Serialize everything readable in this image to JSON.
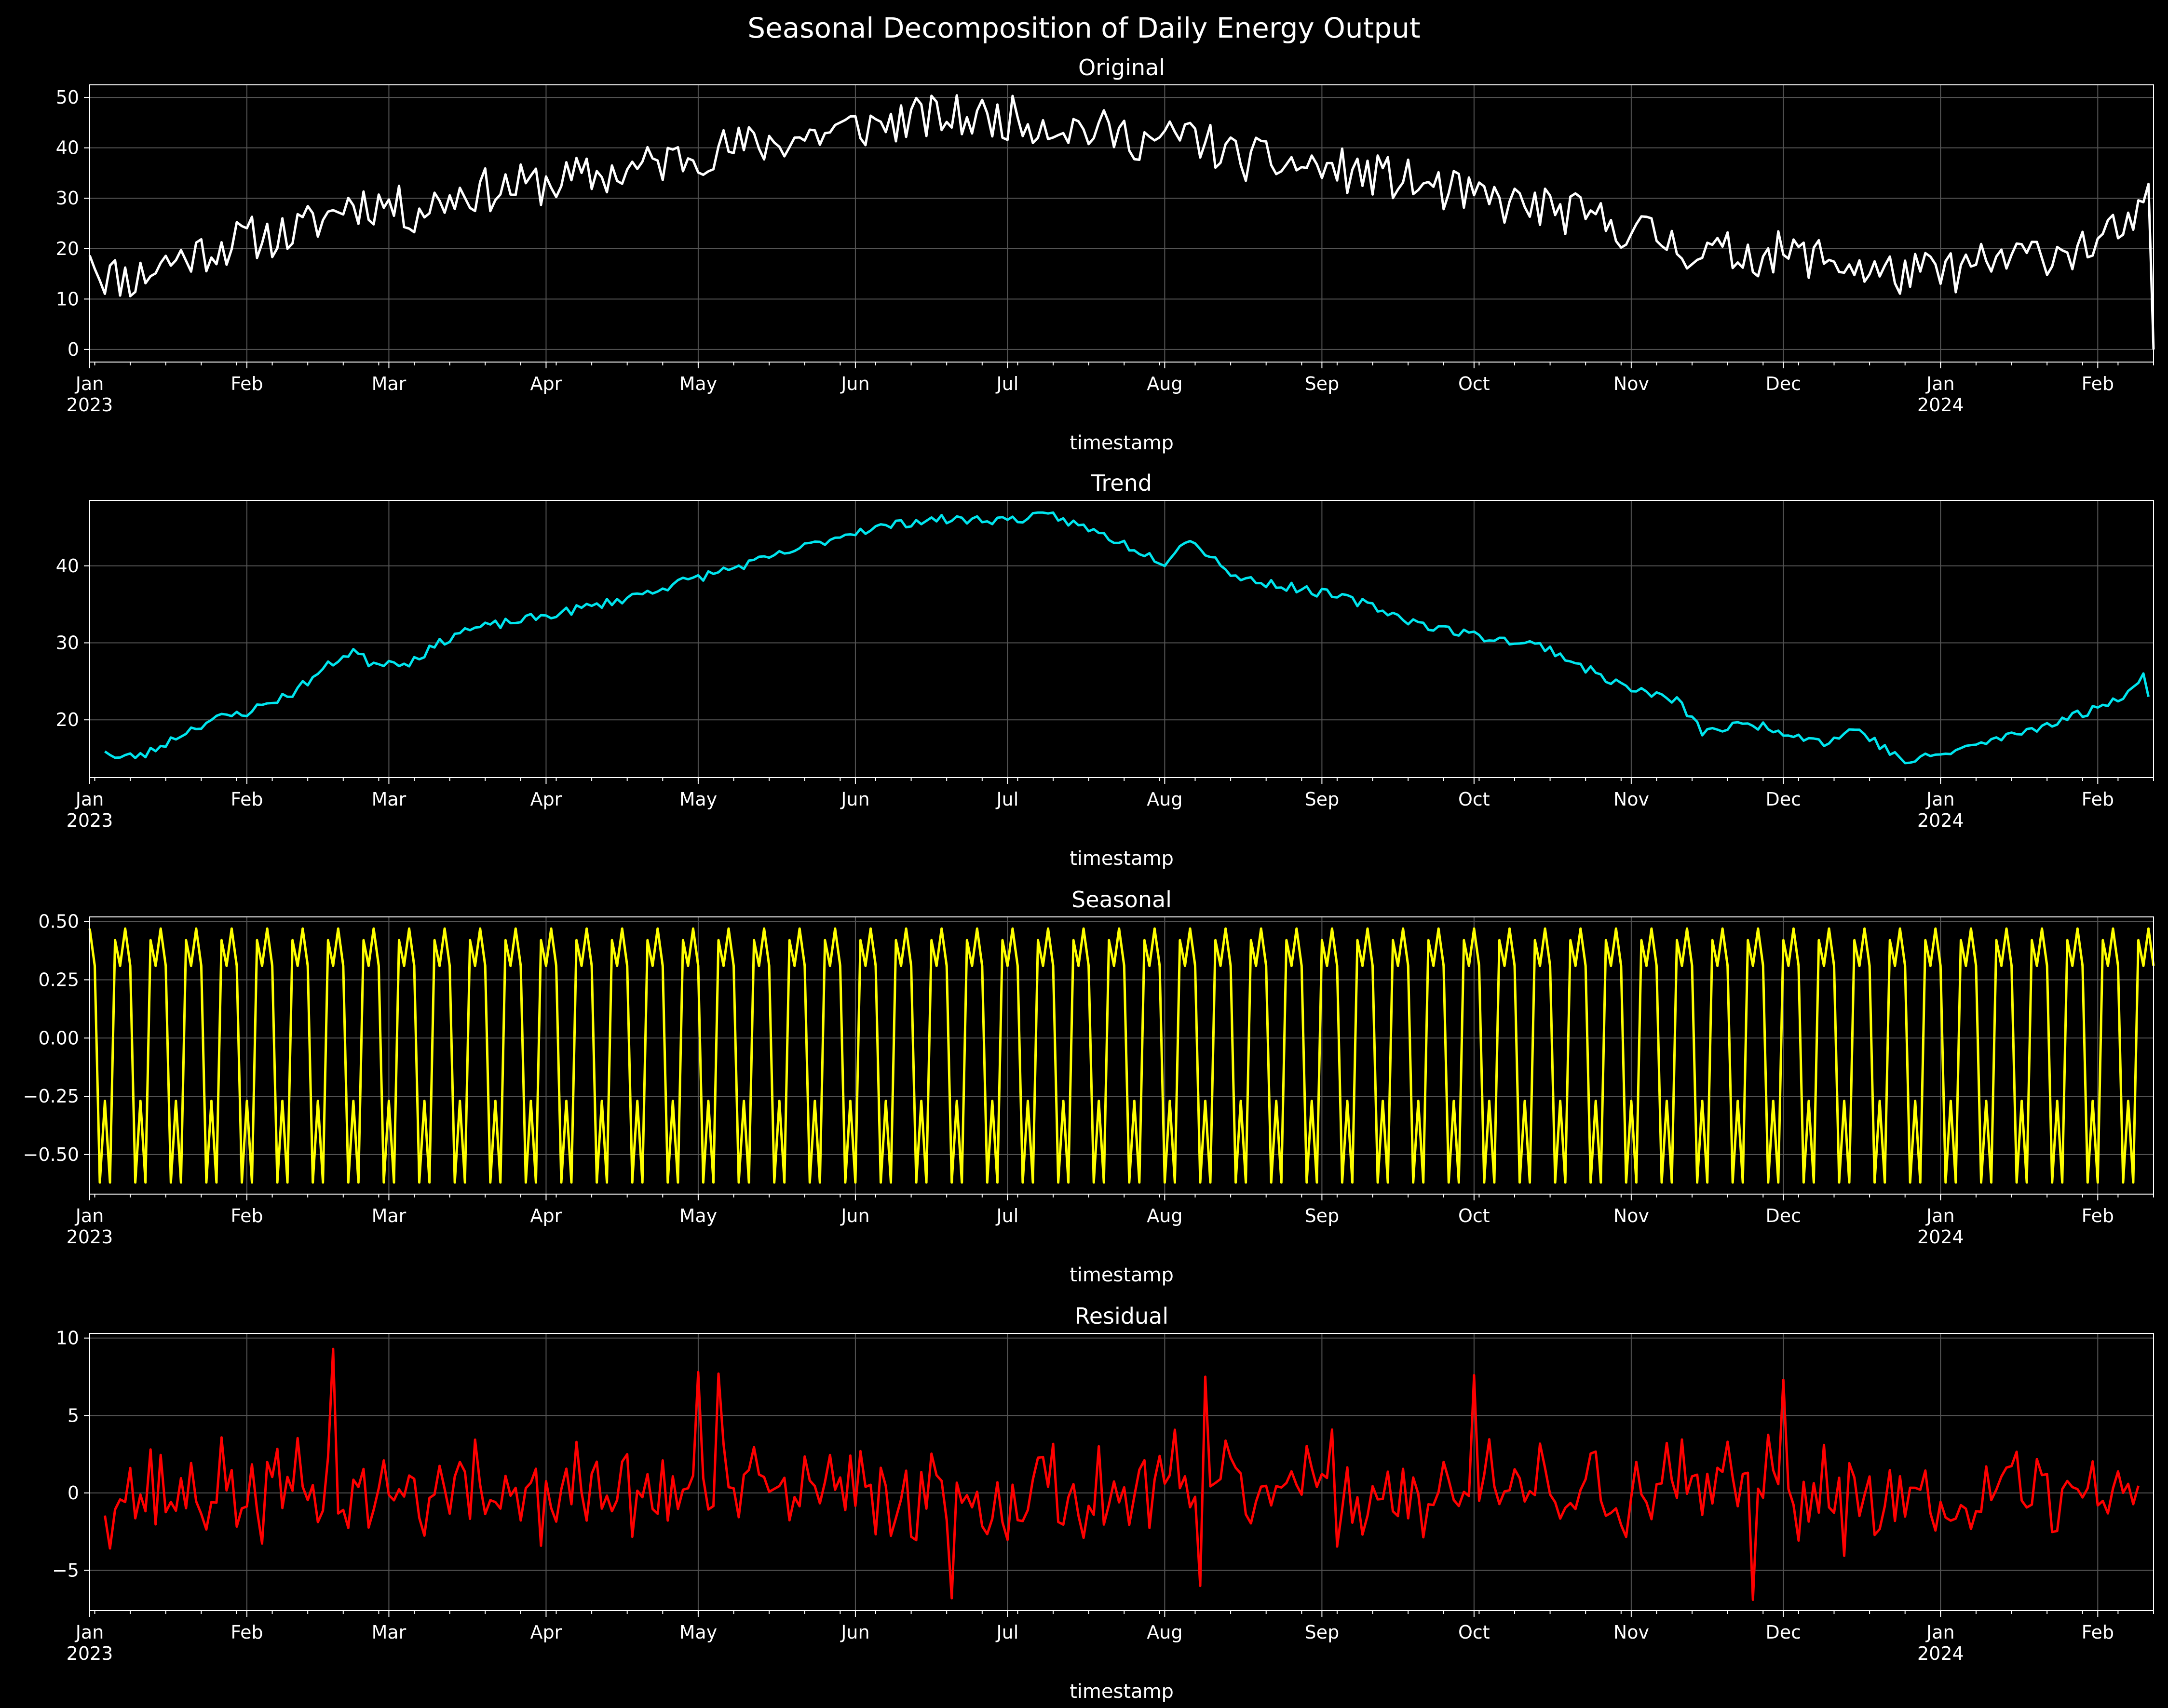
{
  "suptitle": "Seasonal Decomposition of Daily Energy Output",
  "colors": {
    "background": "#000000",
    "axes": "#ffffff",
    "grid": "#555555",
    "Original": "#ffffff",
    "Trend": "#00e5ee",
    "Seasonal": "#ffff00",
    "Residual": "#ff0000"
  },
  "chart_data": [
    {
      "type": "line",
      "title": "Original",
      "xlabel": "timestamp",
      "ylabel": "",
      "x_range": [
        "2023-01-01",
        "2024-02-12"
      ],
      "ylim": [
        -2.5,
        52.5
      ],
      "yticks": [
        0,
        10,
        20,
        30,
        40,
        50
      ],
      "grid": true,
      "color": "#ffffff",
      "anchors": [
        {
          "x": "2023-01-01",
          "y": 21
        },
        {
          "x": "2023-01-03",
          "y": 15
        },
        {
          "x": "2023-01-10",
          "y": 14
        },
        {
          "x": "2023-01-15",
          "y": 17
        },
        {
          "x": "2023-01-25",
          "y": 20
        },
        {
          "x": "2023-02-01",
          "y": 22
        },
        {
          "x": "2023-02-10",
          "y": 23
        },
        {
          "x": "2023-02-18",
          "y": 27
        },
        {
          "x": "2023-02-20",
          "y": 29
        },
        {
          "x": "2023-03-01",
          "y": 29
        },
        {
          "x": "2023-03-05",
          "y": 27
        },
        {
          "x": "2023-03-15",
          "y": 31
        },
        {
          "x": "2023-04-01",
          "y": 33
        },
        {
          "x": "2023-04-15",
          "y": 35
        },
        {
          "x": "2023-05-01",
          "y": 39
        },
        {
          "x": "2023-05-15",
          "y": 41
        },
        {
          "x": "2023-06-01",
          "y": 44
        },
        {
          "x": "2023-06-15",
          "y": 46
        },
        {
          "x": "2023-07-01",
          "y": 46
        },
        {
          "x": "2023-07-15",
          "y": 44
        },
        {
          "x": "2023-08-01",
          "y": 41
        },
        {
          "x": "2023-08-05",
          "y": 43
        },
        {
          "x": "2023-08-15",
          "y": 38
        },
        {
          "x": "2023-09-01",
          "y": 36
        },
        {
          "x": "2023-09-15",
          "y": 34
        },
        {
          "x": "2023-10-01",
          "y": 30
        },
        {
          "x": "2023-10-15",
          "y": 28
        },
        {
          "x": "2023-11-01",
          "y": 24
        },
        {
          "x": "2023-11-15",
          "y": 19
        },
        {
          "x": "2023-12-01",
          "y": 19
        },
        {
          "x": "2023-12-10",
          "y": 18
        },
        {
          "x": "2023-12-20",
          "y": 15
        },
        {
          "x": "2024-01-01",
          "y": 15
        },
        {
          "x": "2024-01-15",
          "y": 18
        },
        {
          "x": "2024-02-01",
          "y": 21
        },
        {
          "x": "2024-02-10",
          "y": 26
        },
        {
          "x": "2024-02-11",
          "y": 29
        }
      ],
      "last_value": {
        "x": "2024-02-12",
        "y": 0
      },
      "noise_amplitude": 4.5
    },
    {
      "type": "line",
      "title": "Trend",
      "xlabel": "timestamp",
      "ylabel": "",
      "x_range": [
        "2023-01-01",
        "2024-02-12"
      ],
      "ylim": [
        12.5,
        48.5
      ],
      "yticks": [
        20,
        30,
        40
      ],
      "grid": true,
      "color": "#00e5ee",
      "anchors": [
        {
          "x": "2023-01-04",
          "y": 16.2
        },
        {
          "x": "2023-01-06",
          "y": 15.0
        },
        {
          "x": "2023-01-12",
          "y": 15.5
        },
        {
          "x": "2023-01-20",
          "y": 18.5
        },
        {
          "x": "2023-01-25",
          "y": 20.0
        },
        {
          "x": "2023-02-01",
          "y": 21.0
        },
        {
          "x": "2023-02-10",
          "y": 23.5
        },
        {
          "x": "2023-02-18",
          "y": 27.5
        },
        {
          "x": "2023-02-22",
          "y": 29.0
        },
        {
          "x": "2023-02-25",
          "y": 27.5
        },
        {
          "x": "2023-03-05",
          "y": 27.5
        },
        {
          "x": "2023-03-15",
          "y": 31.5
        },
        {
          "x": "2023-04-01",
          "y": 33.5
        },
        {
          "x": "2023-04-15",
          "y": 35.5
        },
        {
          "x": "2023-05-01",
          "y": 38.5
        },
        {
          "x": "2023-05-15",
          "y": 41.0
        },
        {
          "x": "2023-06-01",
          "y": 44.5
        },
        {
          "x": "2023-06-15",
          "y": 46.0
        },
        {
          "x": "2023-07-01",
          "y": 46.0
        },
        {
          "x": "2023-07-10",
          "y": 46.5
        },
        {
          "x": "2023-07-20",
          "y": 44.0
        },
        {
          "x": "2023-08-01",
          "y": 40.5
        },
        {
          "x": "2023-08-05",
          "y": 43.5
        },
        {
          "x": "2023-08-10",
          "y": 41.5
        },
        {
          "x": "2023-08-15",
          "y": 38.5
        },
        {
          "x": "2023-09-01",
          "y": 36.5
        },
        {
          "x": "2023-09-10",
          "y": 35.0
        },
        {
          "x": "2023-09-20",
          "y": 32.5
        },
        {
          "x": "2023-10-01",
          "y": 31.0
        },
        {
          "x": "2023-10-15",
          "y": 29.5
        },
        {
          "x": "2023-10-25",
          "y": 26.0
        },
        {
          "x": "2023-11-01",
          "y": 24.0
        },
        {
          "x": "2023-11-10",
          "y": 22.5
        },
        {
          "x": "2023-11-15",
          "y": 18.5
        },
        {
          "x": "2023-11-25",
          "y": 19.5
        },
        {
          "x": "2023-12-01",
          "y": 18.5
        },
        {
          "x": "2023-12-10",
          "y": 17.0
        },
        {
          "x": "2023-12-15",
          "y": 19.0
        },
        {
          "x": "2023-12-25",
          "y": 14.5
        },
        {
          "x": "2024-01-01",
          "y": 15.5
        },
        {
          "x": "2024-01-15",
          "y": 18.0
        },
        {
          "x": "2024-02-01",
          "y": 21.5
        },
        {
          "x": "2024-02-08",
          "y": 24.0
        },
        {
          "x": "2024-02-10",
          "y": 26.0
        },
        {
          "x": "2024-02-11",
          "y": 22.5
        }
      ],
      "noise_amplitude": 0.6
    },
    {
      "type": "line",
      "title": "Seasonal",
      "xlabel": "timestamp",
      "ylabel": "",
      "x_range": [
        "2023-01-01",
        "2024-02-12"
      ],
      "ylim": [
        -0.67,
        0.52
      ],
      "yticks": [
        -0.5,
        -0.25,
        0.0,
        0.25,
        0.5
      ],
      "ytick_labels": [
        "−0.50",
        "−0.25",
        "0.00",
        "0.25",
        "0.50"
      ],
      "grid": true,
      "color": "#ffff00",
      "period_days": 7,
      "weekly_pattern": [
        0.47,
        0.31,
        -0.62,
        -0.27,
        -0.62,
        0.42,
        0.31
      ]
    },
    {
      "type": "line",
      "title": "Residual",
      "xlabel": "timestamp",
      "ylabel": "",
      "x_range": [
        "2023-01-01",
        "2024-02-12"
      ],
      "ylim": [
        -7.6,
        10.3
      ],
      "yticks": [
        -5,
        0,
        5,
        10
      ],
      "ytick_labels": [
        "−5",
        "0",
        "5",
        "10"
      ],
      "grid": true,
      "color": "#ff0000",
      "range_of_values": [
        -7,
        9.3
      ],
      "spikes": [
        {
          "x": "2023-02-18",
          "y": 9.3
        },
        {
          "x": "2023-05-01",
          "y": 7.8
        },
        {
          "x": "2023-05-05",
          "y": 7.7
        },
        {
          "x": "2023-08-09",
          "y": 7.5
        },
        {
          "x": "2023-10-01",
          "y": 7.6
        },
        {
          "x": "2023-12-01",
          "y": 7.3
        },
        {
          "x": "2023-11-25",
          "y": -6.9
        },
        {
          "x": "2023-06-20",
          "y": -6.8
        },
        {
          "x": "2023-08-08",
          "y": -6.0
        }
      ]
    }
  ],
  "xaxis": {
    "month_ticks": [
      {
        "date": "2023-01-01",
        "label": "Jan",
        "year": "2023"
      },
      {
        "date": "2023-02-01",
        "label": "Feb",
        "year": ""
      },
      {
        "date": "2023-03-01",
        "label": "Mar",
        "year": ""
      },
      {
        "date": "2023-04-01",
        "label": "Apr",
        "year": ""
      },
      {
        "date": "2023-05-01",
        "label": "May",
        "year": ""
      },
      {
        "date": "2023-06-01",
        "label": "Jun",
        "year": ""
      },
      {
        "date": "2023-07-01",
        "label": "Jul",
        "year": ""
      },
      {
        "date": "2023-08-01",
        "label": "Aug",
        "year": ""
      },
      {
        "date": "2023-09-01",
        "label": "Sep",
        "year": ""
      },
      {
        "date": "2023-10-01",
        "label": "Oct",
        "year": ""
      },
      {
        "date": "2023-11-01",
        "label": "Nov",
        "year": ""
      },
      {
        "date": "2023-12-01",
        "label": "Dec",
        "year": ""
      },
      {
        "date": "2024-01-01",
        "label": "Jan",
        "year": "2024"
      },
      {
        "date": "2024-02-01",
        "label": "Feb",
        "year": ""
      }
    ],
    "minor_tick_interval": "weekly"
  }
}
